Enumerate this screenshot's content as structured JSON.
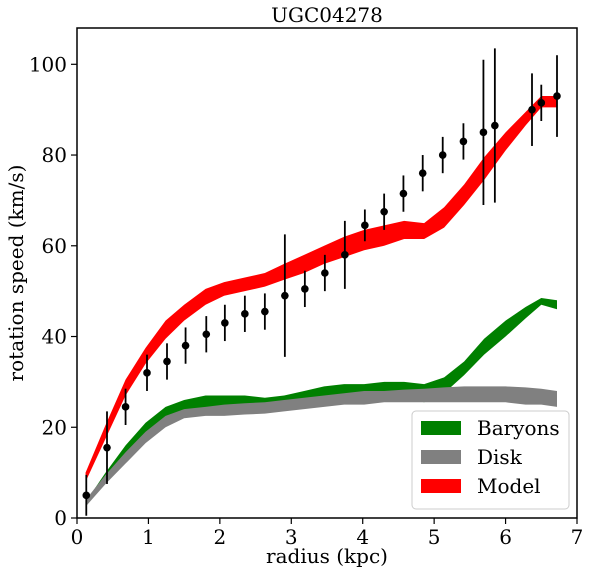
{
  "chart_data": {
    "type": "line",
    "title": "UGC04278",
    "xlabel": "radius (kpc)",
    "ylabel": "rotation speed (km/s)",
    "xlim": [
      0,
      7
    ],
    "ylim": [
      0,
      108
    ],
    "xticks": [
      "0",
      "1",
      "2",
      "3",
      "4",
      "5",
      "6",
      "7"
    ],
    "yticks": [
      "0",
      "20",
      "40",
      "60",
      "80",
      "100"
    ],
    "grid": false,
    "legend_position": "lower-right",
    "bands": [
      {
        "name": "Baryons",
        "color": "#008000",
        "x": [
          0.12,
          0.4,
          0.68,
          0.96,
          1.24,
          1.5,
          1.8,
          2.06,
          2.35,
          2.63,
          2.9,
          3.18,
          3.46,
          3.74,
          4.02,
          4.3,
          4.58,
          4.86,
          5.14,
          5.42,
          5.7,
          6.0,
          6.28,
          6.5,
          6.72
        ],
        "lower": [
          2.5,
          8,
          13,
          17.5,
          21,
          22.5,
          24,
          24,
          23.5,
          23.5,
          24,
          25,
          26,
          26.5,
          27,
          27,
          26.5,
          25.5,
          27.5,
          31.5,
          36,
          40,
          44,
          47,
          46
        ],
        "upper": [
          3.5,
          10,
          16,
          21,
          24.5,
          26,
          27,
          27,
          27,
          26.5,
          27,
          28,
          29,
          29.5,
          29.5,
          30,
          30,
          29.5,
          31,
          34.5,
          39.5,
          43.5,
          46.5,
          48.5,
          48
        ]
      },
      {
        "name": "Disk",
        "color": "#808080",
        "x": [
          0.12,
          0.4,
          0.68,
          0.96,
          1.24,
          1.5,
          1.8,
          2.06,
          2.35,
          2.63,
          2.9,
          3.18,
          3.46,
          3.74,
          4.02,
          4.3,
          4.58,
          4.86,
          5.14,
          5.42,
          5.7,
          6.0,
          6.28,
          6.5,
          6.72
        ],
        "lower": [
          2.5,
          7.5,
          12,
          16.5,
          20,
          22,
          22.5,
          22.5,
          22.8,
          23,
          23.5,
          24,
          24.5,
          25,
          25,
          25.5,
          25.5,
          25.5,
          25.5,
          25.5,
          25.5,
          25.5,
          25,
          25,
          24.5
        ],
        "upper": [
          4,
          9.5,
          14.5,
          19,
          22.5,
          24,
          24.5,
          25,
          25.3,
          25.5,
          26,
          26.5,
          27,
          27.5,
          28,
          28,
          28.3,
          28.5,
          28.8,
          29,
          29,
          29,
          28.8,
          28.5,
          28
        ]
      },
      {
        "name": "Model",
        "color": "#ff0000",
        "x": [
          0.12,
          0.4,
          0.68,
          0.96,
          1.24,
          1.5,
          1.8,
          2.06,
          2.35,
          2.63,
          2.9,
          3.18,
          3.46,
          3.74,
          4.02,
          4.3,
          4.58,
          4.86,
          5.14,
          5.42,
          5.7,
          6.0,
          6.28,
          6.5,
          6.72
        ],
        "lower": [
          8,
          17.5,
          27,
          34,
          39.5,
          43.5,
          47,
          49,
          50,
          51,
          52.5,
          54,
          56,
          57.5,
          59,
          60,
          61.5,
          61.5,
          64,
          69,
          74.5,
          81,
          86.5,
          90.5,
          90.5
        ],
        "upper": [
          10,
          20.5,
          30.5,
          37.5,
          43.5,
          47,
          50.5,
          52,
          53,
          54,
          56,
          58,
          60,
          62,
          63.5,
          64.5,
          65.5,
          65,
          68.5,
          73.5,
          79.5,
          85,
          89.5,
          93,
          93
        ]
      }
    ],
    "observed": {
      "name": "data",
      "color": "#000000",
      "x": [
        0.13,
        0.42,
        0.68,
        0.98,
        1.26,
        1.52,
        1.81,
        2.07,
        2.35,
        2.63,
        2.91,
        3.19,
        3.47,
        3.75,
        4.03,
        4.3,
        4.57,
        4.84,
        5.12,
        5.41,
        5.69,
        5.85,
        6.37,
        6.5,
        6.72
      ],
      "y": [
        5,
        15.5,
        24.5,
        32,
        34.5,
        38,
        40.5,
        43,
        45,
        45.5,
        49,
        50.5,
        54,
        58,
        64.5,
        67.5,
        71.5,
        76,
        80,
        83,
        85,
        86.5,
        90,
        91.5,
        93
      ],
      "yerr": [
        4.5,
        8,
        4,
        4,
        4,
        4,
        4,
        4,
        4,
        4,
        13.5,
        4,
        4,
        7.5,
        3.5,
        4,
        4,
        4,
        4,
        4,
        16,
        17,
        8,
        4,
        9
      ]
    }
  }
}
